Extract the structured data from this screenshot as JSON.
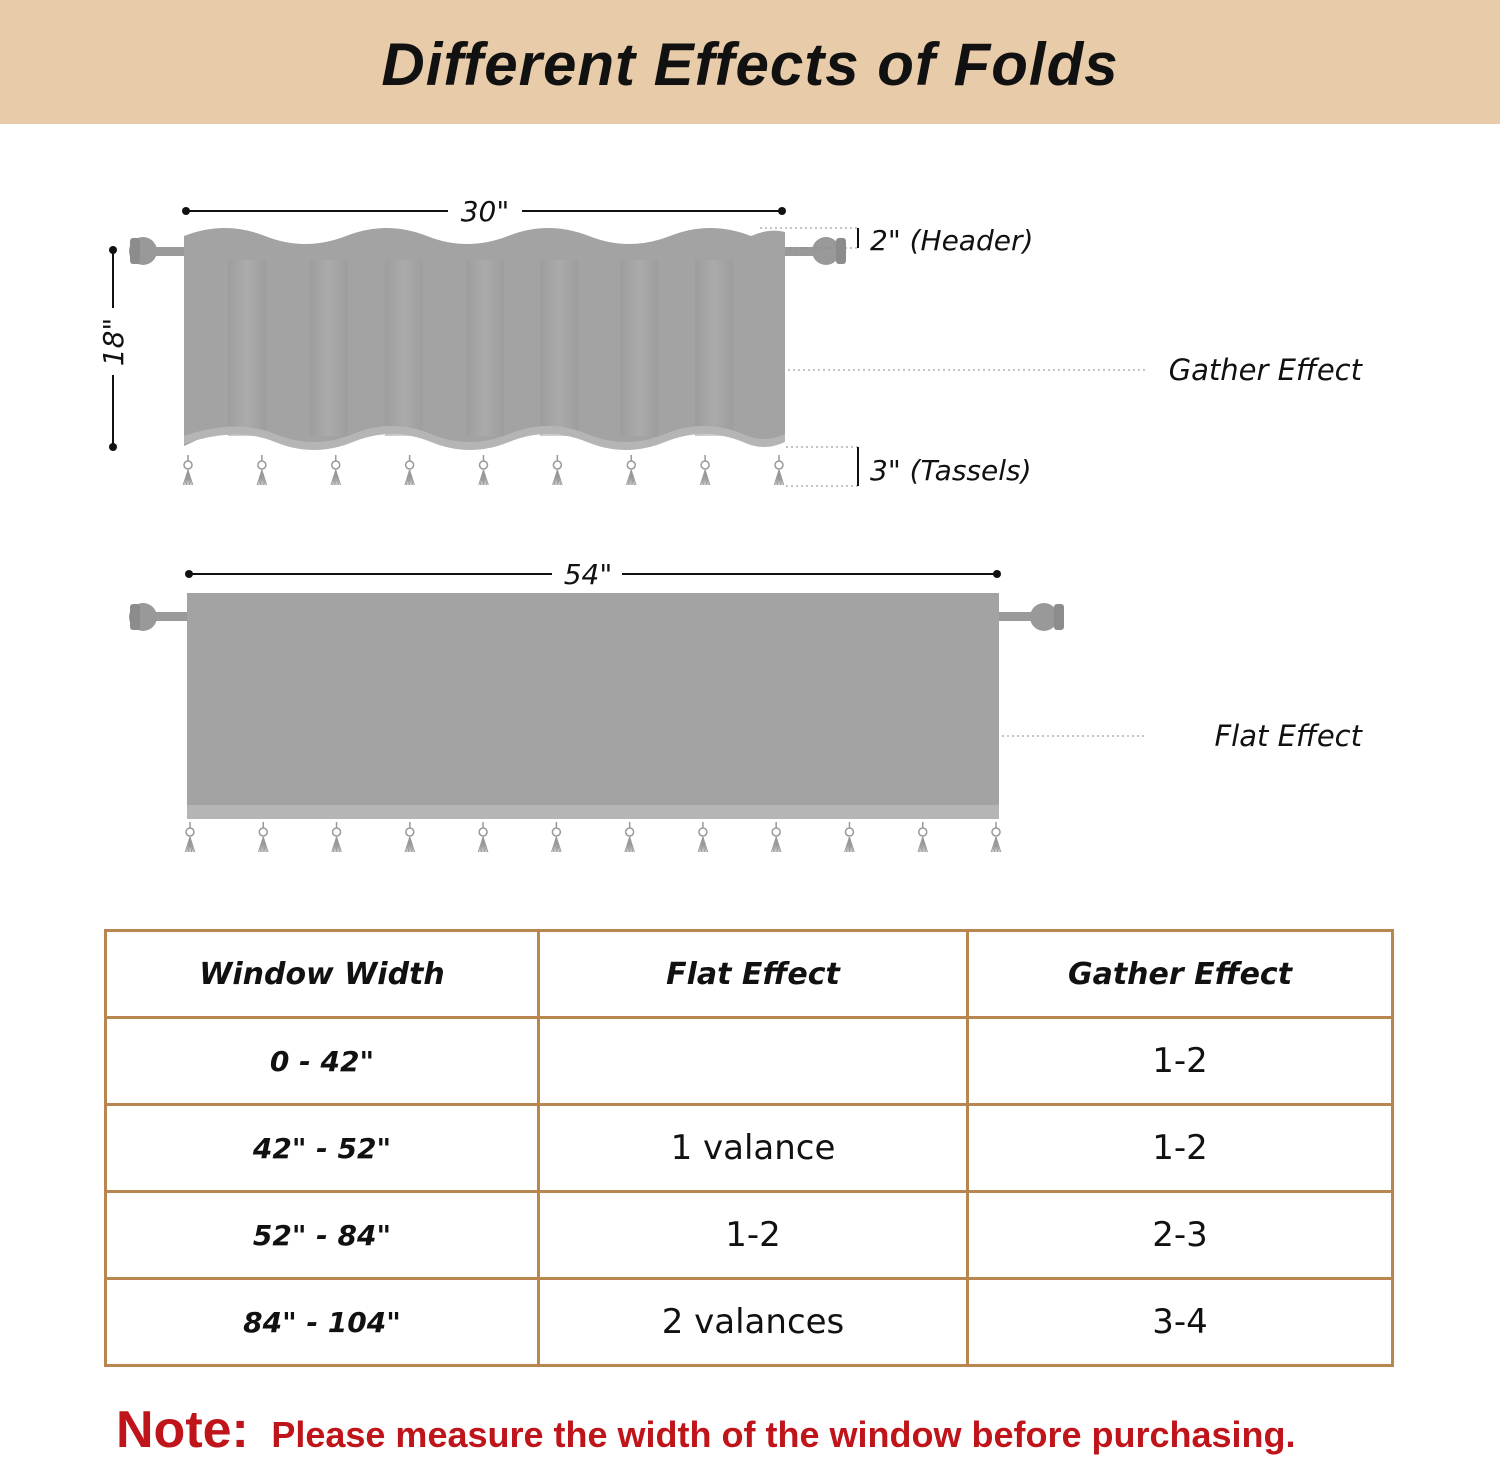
{
  "title": "Different Effects of Folds",
  "colors": {
    "header_background": "#e8cba8",
    "table_border": "#b8874f",
    "note": "#c0141b",
    "curtain": "#a3a3a3"
  },
  "gather_diagram": {
    "width_label": "30\"",
    "height_label": "18\"",
    "header_label": "2\" (Header)",
    "tassel_label": "3\" (Tassels)",
    "effect_label": "Gather Effect",
    "tassel_count": 9
  },
  "flat_diagram": {
    "width_label": "54\"",
    "effect_label": "Flat Effect",
    "tassel_count": 12
  },
  "table": {
    "headers": [
      "Window Width",
      "Flat Effect",
      "Gather Effect"
    ],
    "rows": [
      {
        "width": "0 - 42\"",
        "flat": "",
        "gather": "1-2"
      },
      {
        "width": "42\" - 52\"",
        "flat": "1 valance",
        "gather": "1-2"
      },
      {
        "width": "52\" - 84\"",
        "flat": "1-2",
        "gather": "2-3"
      },
      {
        "width": "84\" - 104\"",
        "flat": "2 valances",
        "gather": "3-4"
      }
    ]
  },
  "note": {
    "label": "Note:",
    "text": "Please measure the width of the window before purchasing."
  }
}
